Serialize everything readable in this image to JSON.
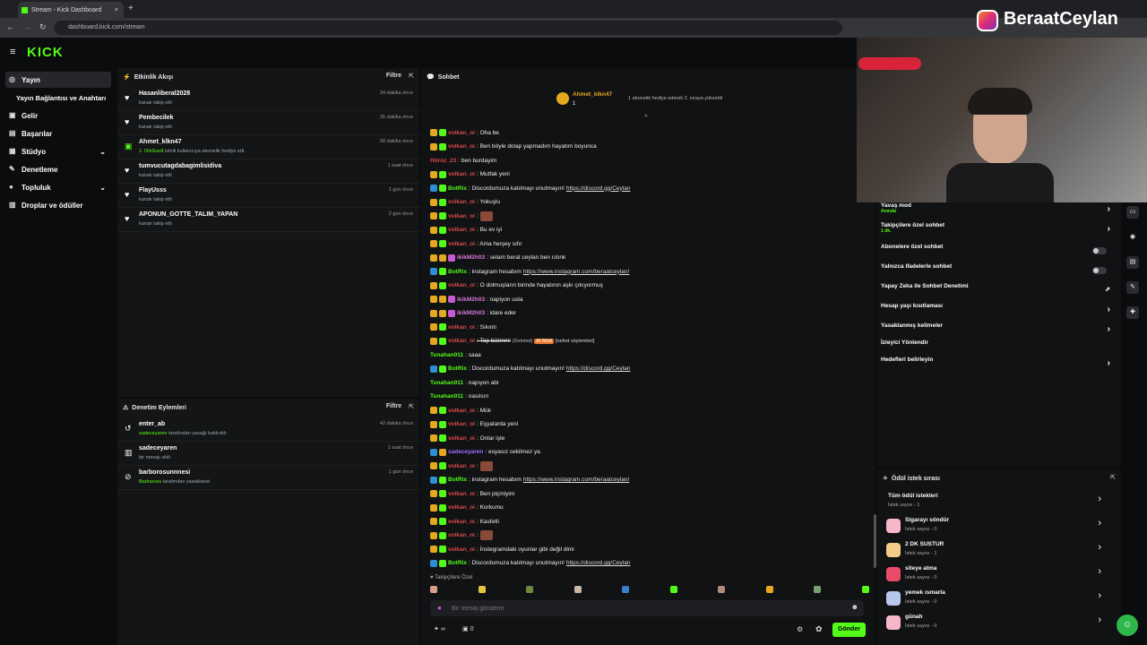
{
  "browser": {
    "tab_title": "Stream - Kick Dashboard",
    "url": "dashboard.kick.com/stream"
  },
  "overlay": {
    "streamer_name": "BeraatCeylan"
  },
  "brand": {
    "logo": "KICK",
    "accent": "#53fc18"
  },
  "sidebar": {
    "items": [
      {
        "label": "Yayın",
        "icon": "broadcast-icon"
      },
      {
        "label": "Yayın Bağlantısı ve Anahtarı"
      },
      {
        "label": "Gelir",
        "icon": "money-icon"
      },
      {
        "label": "Başarılar",
        "icon": "trophy-icon"
      },
      {
        "label": "Stüdyo",
        "icon": "studio-icon"
      },
      {
        "label": "Denetleme",
        "icon": "wrench-icon"
      },
      {
        "label": "Topluluk",
        "icon": "community-icon"
      },
      {
        "label": "Droplar ve ödüller",
        "icon": "gift-icon"
      }
    ]
  },
  "activity": {
    "title": "Etkinlik Akışı",
    "filter_label": "Filtre",
    "items": [
      {
        "name": "Hasanliberal2028",
        "sub": "kanalı takip etti",
        "time": "24 dakika önce",
        "icon": "heart-icon"
      },
      {
        "name": "Pembecilek",
        "sub": "kanalı takip etti",
        "time": "35 dakika önce",
        "icon": "heart-icon"
      },
      {
        "name": "Ahmet_klkn47",
        "sub_highlight": "1. DrkSou8",
        "sub": " isimli kullanıcıya abonelik hediye etti.",
        "time": "58 dakika önce",
        "icon": "gift-icon"
      },
      {
        "name": "tumvucutagdabagimlisidiva",
        "sub": "kanalı takip etti",
        "time": "1 saat önce",
        "icon": "heart-icon"
      },
      {
        "name": "FlayUsss",
        "sub": "kanalı takip etti",
        "time": "1 gün önce",
        "icon": "heart-icon"
      },
      {
        "name": "APONUN_GOTTE_TALIM_YAPAN",
        "sub": "kanalı takip etti",
        "time": "2 gün önce",
        "icon": "heart-icon"
      }
    ]
  },
  "moderation": {
    "title": "Denetim Eylemleri",
    "filter_label": "Filtre",
    "items": [
      {
        "name": "enter_ab",
        "actor": "sadeceyaren",
        "sub": " tarafından yasağı kaldırıldı",
        "time": "42 dakika önce",
        "icon": "undo-icon"
      },
      {
        "name": "sadeceyaren",
        "actor": "",
        "sub": "bir mesajı sildi",
        "time": "1 saat önce",
        "icon": "trash-icon"
      },
      {
        "name": "barborosunnnesi",
        "actor": "Barbaross",
        "sub": " tarafından yasaklandı",
        "time": "1 gün önce",
        "icon": "ban-icon"
      }
    ]
  },
  "chat": {
    "title": "Sohbet",
    "pinned_user": "Ahmet_klkn47",
    "pinned_count": "1",
    "pinned_text": "1 abonelik hediye ederek 2. sıraya yükseldi",
    "lines": [
      {
        "badges": [
          "gold",
          "green"
        ],
        "user": "volkan_oi",
        "ucls": "u-red",
        "text": ": Oha be"
      },
      {
        "badges": [
          "gold",
          "green"
        ],
        "user": "volkan_oi",
        "ucls": "u-red",
        "text": ": Ben böyle dolap yapmadım hayatım boyunca"
      },
      {
        "badges": [],
        "user": "Hüroz_23",
        "ucls": "u-red",
        "text": ": ben burdayim"
      },
      {
        "badges": [
          "gold",
          "green"
        ],
        "user": "volkan_oi",
        "ucls": "u-red",
        "text": ": Mutfak yeni"
      },
      {
        "badges": [
          "blue",
          "green"
        ],
        "user": "BotRix",
        "ucls": "u-green",
        "text": ": Discordumuza katılmayı unutmayın! ",
        "link": "https://discord.gg/Ceylan"
      },
      {
        "badges": [
          "gold",
          "green"
        ],
        "user": "volkan_oi",
        "ucls": "u-red",
        "text": ": Yokuşlu"
      },
      {
        "badges": [
          "gold",
          "green"
        ],
        "user": "volkan_oi",
        "ucls": "u-red",
        "text": ": ",
        "emote": true
      },
      {
        "badges": [
          "gold",
          "green"
        ],
        "user": "volkan_oi",
        "ucls": "u-red",
        "text": ": Bu ev iyi"
      },
      {
        "badges": [
          "gold",
          "green"
        ],
        "user": "volkan_oi",
        "ucls": "u-red",
        "text": ": Ama herşey sıfır"
      },
      {
        "badges": [
          "gold",
          "gold",
          "pink"
        ],
        "user": "ikikM2h03",
        "ucls": "u-pink",
        "text": ": selam berat ceylan ben cıtınk"
      },
      {
        "badges": [
          "blue",
          "green"
        ],
        "user": "BotRix",
        "ucls": "u-green",
        "text": ": instagram hesabım ",
        "link": "https://www.instagram.com/beraatceylan/"
      },
      {
        "badges": [
          "gold",
          "green"
        ],
        "user": "volkan_oi",
        "ucls": "u-red",
        "text": ": O dolmuşların birinde hayatının aşkı çıkıyormuş"
      },
      {
        "badges": [
          "gold",
          "gold",
          "pink"
        ],
        "user": "ikikM2h03",
        "ucls": "u-pink",
        "text": ": napiyon usta"
      },
      {
        "badges": [
          "gold",
          "gold",
          "pink"
        ],
        "user": "ikikM2h03",
        "ucls": "u-pink",
        "text": ": idare eder"
      },
      {
        "badges": [
          "gold",
          "green"
        ],
        "user": "volkan_oi",
        "ucls": "u-red",
        "text": ": Sıkıntı"
      },
      {
        "badges": [
          "gold",
          "green"
        ],
        "user": "volkan_oi",
        "ucls": "u-red",
        "text": ": Top bizimmi",
        "deleted": "(Deleted)",
        "mod": "AI Mod",
        "note": "[nefret söylemleri]"
      },
      {
        "badges": [],
        "user": "Tunahan011",
        "ucls": "u-green",
        "text": ": saaa"
      },
      {
        "badges": [
          "blue",
          "green"
        ],
        "user": "BotRix",
        "ucls": "u-green",
        "text": ": Discordumuza katılmayı unutmayın! ",
        "link": "https://discord.gg/Ceylan"
      },
      {
        "badges": [],
        "user": "Tunahan011",
        "ucls": "u-green",
        "text": ": napıyon abi"
      },
      {
        "badges": [],
        "user": "Tunahan011",
        "ucls": "u-green",
        "text": ": nasılsın"
      },
      {
        "badges": [
          "gold",
          "green"
        ],
        "user": "volkan_oi",
        "ucls": "u-red",
        "text": ": Mük"
      },
      {
        "badges": [
          "gold",
          "green"
        ],
        "user": "volkan_oi",
        "ucls": "u-red",
        "text": ": Eşyalarda yeni"
      },
      {
        "badges": [
          "gold",
          "green"
        ],
        "user": "volkan_oi",
        "ucls": "u-red",
        "text": ": Onlar işte"
      },
      {
        "badges": [
          "blue",
          "gold"
        ],
        "user": "sadeceyaren",
        "ucls": "u-purple",
        "text": ": esyasız cekilmez ya"
      },
      {
        "badges": [
          "gold",
          "green"
        ],
        "user": "volkan_oi",
        "ucls": "u-red",
        "text": ": ",
        "emote": true
      },
      {
        "badges": [
          "blue",
          "green"
        ],
        "user": "BotRix",
        "ucls": "u-green",
        "text": ": instagram hesabım ",
        "link": "https://www.instagram.com/beraatceylan/"
      },
      {
        "badges": [
          "gold",
          "green"
        ],
        "user": "volkan_oi",
        "ucls": "u-red",
        "text": ": Ben piçmiyim"
      },
      {
        "badges": [
          "gold",
          "green"
        ],
        "user": "volkan_oi",
        "ucls": "u-red",
        "text": ": Korkumu"
      },
      {
        "badges": [
          "gold",
          "green"
        ],
        "user": "volkan_oi",
        "ucls": "u-red",
        "text": ": Kasfetli"
      },
      {
        "badges": [
          "gold",
          "green"
        ],
        "user": "volkan_oi",
        "ucls": "u-red",
        "text": ": ",
        "emote": true
      },
      {
        "badges": [
          "gold",
          "green"
        ],
        "user": "volkan_oi",
        "ucls": "u-red",
        "text": ": İnstegramdaki oyunlar gibi değil dimi"
      },
      {
        "badges": [
          "blue",
          "green"
        ],
        "user": "BotRix",
        "ucls": "u-green",
        "text": ": Discordumuza katılmayı unutmayın! ",
        "link": "https://discord.gg/Ceylan"
      }
    ],
    "followers_only_label": "Takipçilere Özel",
    "input_placeholder": "Bir mesaj gönderin",
    "points_label": "∞",
    "gift_count": "0",
    "send_label": "Gönder"
  },
  "settings": {
    "items": [
      {
        "label": "Yavaş mod",
        "sub": "Anında",
        "control": "chevron"
      },
      {
        "label": "Takipçilere özel sohbet",
        "sub": "1 dk.",
        "control": "chevron"
      },
      {
        "label": "Abonelere özel sohbet",
        "control": "toggle"
      },
      {
        "label": "Yalnızca ifadelerle sohbet",
        "control": "toggle"
      },
      {
        "label": "Yapay Zeka ile Sohbet Denetimi",
        "control": "external"
      },
      {
        "label": "Hesap yaşı kısıtlaması",
        "control": "chevron"
      },
      {
        "label": "Yasaklanmış kelimeler",
        "control": "chevron"
      },
      {
        "label": "İzleyici Yönlendir",
        "control": "none"
      },
      {
        "label": "Hedefleri belirleyin",
        "control": "chevron"
      }
    ]
  },
  "rewards": {
    "title": "Ödül istek sırası",
    "all_label": "Tüm ödül istekleri",
    "all_sub": "İstek sayısı - 1",
    "items": [
      {
        "name": "Sigarayı söndür",
        "sub": "İstek sayısı - 0",
        "color": "#f6b8c8"
      },
      {
        "name": "2 DK SUSTUR",
        "sub": "İstek sayısı - 1",
        "color": "#f3cc8a"
      },
      {
        "name": "siteye atma",
        "sub": "İstek sayısı - 0",
        "color": "#e94b6a"
      },
      {
        "name": "yemek ısmarla",
        "sub": "İstek sayısı - 0",
        "color": "#b7c7ee"
      },
      {
        "name": "günah",
        "sub": "İstek sayısı - 0",
        "color": "#f6b8c8"
      }
    ]
  }
}
